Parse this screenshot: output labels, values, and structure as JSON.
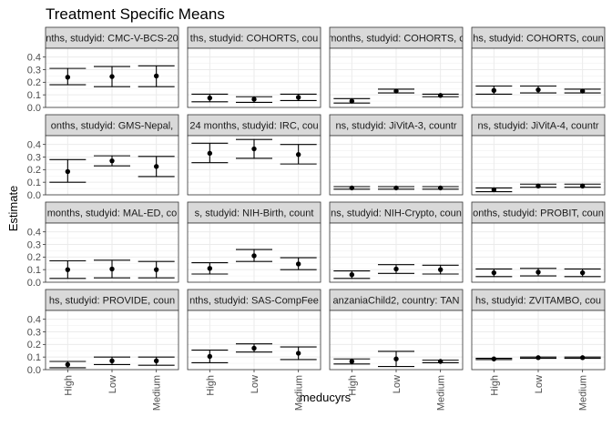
{
  "chart_data": {
    "type": "scatter",
    "title": "Treatment Specific Means",
    "xlabel": "meducyrs",
    "ylabel": "Estimate",
    "categories": [
      "High",
      "Low",
      "Medium"
    ],
    "yticks": [
      0.0,
      0.1,
      0.2,
      0.3,
      0.4
    ],
    "yticks_labels": [
      "0.0",
      "0.1",
      "0.2",
      "0.3",
      "0.4"
    ],
    "ylim": [
      0,
      0.47
    ],
    "grid": true,
    "error_bars": true,
    "panels": [
      {
        "strip": "nths, studyid: CMC-V-BCS-20",
        "est": [
          0.24,
          0.245,
          0.25
        ],
        "lower": [
          0.18,
          0.165,
          0.165
        ],
        "upper": [
          0.31,
          0.325,
          0.33
        ]
      },
      {
        "strip": "ths, studyid: COHORTS, cou",
        "est": [
          0.075,
          0.065,
          0.08
        ],
        "lower": [
          0.045,
          0.04,
          0.055
        ],
        "upper": [
          0.105,
          0.085,
          0.105
        ]
      },
      {
        "strip": "months, studyid: COHORTS, c",
        "est": [
          0.05,
          0.13,
          0.095
        ],
        "lower": [
          0.035,
          0.115,
          0.085
        ],
        "upper": [
          0.07,
          0.145,
          0.105
        ]
      },
      {
        "strip": "hs, studyid: COHORTS, coun",
        "est": [
          0.135,
          0.14,
          0.13
        ],
        "lower": [
          0.105,
          0.115,
          0.115
        ],
        "upper": [
          0.17,
          0.17,
          0.145
        ]
      },
      {
        "strip": "onths, studyid: GMS-Nepal,",
        "est": [
          0.185,
          0.27,
          0.225
        ],
        "lower": [
          0.1,
          0.23,
          0.145
        ],
        "upper": [
          0.28,
          0.31,
          0.305
        ]
      },
      {
        "strip": "24 months, studyid: IRC, cou",
        "est": [
          0.33,
          0.365,
          0.32
        ],
        "lower": [
          0.255,
          0.29,
          0.245
        ],
        "upper": [
          0.41,
          0.44,
          0.4
        ]
      },
      {
        "strip": "ns, studyid: JiVitA-3, countr",
        "est": [
          0.055,
          0.055,
          0.055
        ],
        "lower": [
          0.045,
          0.045,
          0.045
        ],
        "upper": [
          0.065,
          0.065,
          0.065
        ]
      },
      {
        "strip": "ns, studyid: JiVitA-4, countr",
        "est": [
          0.04,
          0.07,
          0.07
        ],
        "lower": [
          0.025,
          0.06,
          0.06
        ],
        "upper": [
          0.055,
          0.085,
          0.085
        ]
      },
      {
        "strip": "months, studyid: MAL-ED, co",
        "est": [
          0.1,
          0.105,
          0.1
        ],
        "lower": [
          0.03,
          0.035,
          0.035
        ],
        "upper": [
          0.17,
          0.175,
          0.165
        ]
      },
      {
        "strip": "s, studyid: NIH-Birth, count",
        "est": [
          0.11,
          0.21,
          0.145
        ],
        "lower": [
          0.065,
          0.165,
          0.1
        ],
        "upper": [
          0.155,
          0.26,
          0.195
        ]
      },
      {
        "strip": "ns, studyid: NIH-Crypto, coun",
        "est": [
          0.06,
          0.105,
          0.1
        ],
        "lower": [
          0.03,
          0.07,
          0.065
        ],
        "upper": [
          0.09,
          0.14,
          0.135
        ]
      },
      {
        "strip": "onths, studyid: PROBIT, coun",
        "est": [
          0.075,
          0.08,
          0.075
        ],
        "lower": [
          0.045,
          0.05,
          0.045
        ],
        "upper": [
          0.105,
          0.11,
          0.105
        ]
      },
      {
        "strip": "hs, studyid: PROVIDE, coun",
        "est": [
          0.04,
          0.07,
          0.07
        ],
        "lower": [
          0.015,
          0.04,
          0.035
        ],
        "upper": [
          0.065,
          0.1,
          0.1
        ]
      },
      {
        "strip": "nths, studyid: SAS-CompFee",
        "est": [
          0.105,
          0.17,
          0.13
        ],
        "lower": [
          0.055,
          0.14,
          0.08
        ],
        "upper": [
          0.155,
          0.205,
          0.18
        ]
      },
      {
        "strip": "anzaniaChild2, country: TAN",
        "est": [
          0.065,
          0.085,
          0.065
        ],
        "lower": [
          0.045,
          0.025,
          0.055
        ],
        "upper": [
          0.085,
          0.145,
          0.075
        ]
      },
      {
        "strip": "hs, studyid: ZVITAMBO, cou",
        "est": [
          0.085,
          0.095,
          0.095
        ],
        "lower": [
          0.08,
          0.09,
          0.09
        ],
        "upper": [
          0.09,
          0.1,
          0.1
        ]
      }
    ]
  }
}
